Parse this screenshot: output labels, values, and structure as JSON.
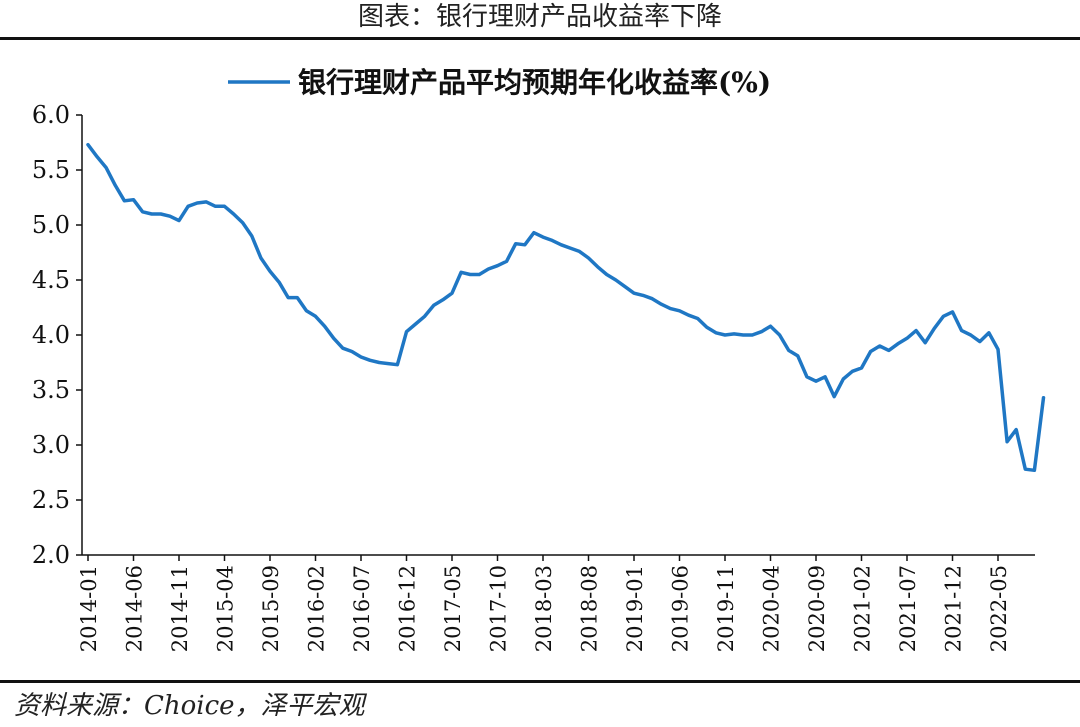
{
  "figure_title": "图表：银行理财产品收益率下降",
  "source_text": "资料来源：Choice，泽平宏观",
  "colors": {
    "series": "#1f77c4",
    "axis": "#111111",
    "rule": "#111111"
  },
  "chart_data": {
    "type": "line",
    "title": "",
    "xlabel": "",
    "ylabel": "",
    "ylim": [
      2.0,
      6.0
    ],
    "yticks": [
      "6.0",
      "5.5",
      "5.0",
      "4.5",
      "4.0",
      "3.5",
      "3.0",
      "2.5",
      "2.0"
    ],
    "xticks": [
      "2014-01",
      "2014-06",
      "2014-11",
      "2015-04",
      "2015-09",
      "2016-02",
      "2016-07",
      "2016-12",
      "2017-05",
      "2017-10",
      "2018-03",
      "2018-08",
      "2019-01",
      "2019-06",
      "2019-11",
      "2020-04",
      "2020-09",
      "2021-02",
      "2021-07",
      "2021-12",
      "2022-05"
    ],
    "grid": false,
    "legend_position": "top-center",
    "series": [
      {
        "name": "银行理财产品平均预期年化收益率(%)",
        "x": [
          "2014-01",
          "2014-02",
          "2014-03",
          "2014-04",
          "2014-05",
          "2014-06",
          "2014-07",
          "2014-08",
          "2014-09",
          "2014-10",
          "2014-11",
          "2014-12",
          "2015-01",
          "2015-02",
          "2015-03",
          "2015-04",
          "2015-05",
          "2015-06",
          "2015-07",
          "2015-08",
          "2015-09",
          "2015-10",
          "2015-11",
          "2015-12",
          "2016-01",
          "2016-02",
          "2016-03",
          "2016-04",
          "2016-05",
          "2016-06",
          "2016-07",
          "2016-08",
          "2016-09",
          "2016-10",
          "2016-11",
          "2016-12",
          "2017-01",
          "2017-02",
          "2017-03",
          "2017-04",
          "2017-05",
          "2017-06",
          "2017-07",
          "2017-08",
          "2017-09",
          "2017-10",
          "2017-11",
          "2017-12",
          "2018-01",
          "2018-02",
          "2018-03",
          "2018-04",
          "2018-05",
          "2018-06",
          "2018-07",
          "2018-08",
          "2018-09",
          "2018-10",
          "2018-11",
          "2018-12",
          "2019-01",
          "2019-02",
          "2019-03",
          "2019-04",
          "2019-05",
          "2019-06",
          "2019-07",
          "2019-08",
          "2019-09",
          "2019-10",
          "2019-11",
          "2019-12",
          "2020-01",
          "2020-02",
          "2020-03",
          "2020-04",
          "2020-05",
          "2020-06",
          "2020-07",
          "2020-08",
          "2020-09",
          "2020-10",
          "2020-11",
          "2020-12",
          "2021-01",
          "2021-02",
          "2021-03",
          "2021-04",
          "2021-05",
          "2021-06",
          "2021-07",
          "2021-08",
          "2021-09",
          "2021-10",
          "2021-11",
          "2021-12",
          "2022-01",
          "2022-02",
          "2022-03",
          "2022-04",
          "2022-05",
          "2022-06",
          "2022-07",
          "2022-08",
          "2022-09",
          "2022-10"
        ],
        "values": [
          5.73,
          5.62,
          5.52,
          5.36,
          5.22,
          5.23,
          5.12,
          5.1,
          5.1,
          5.08,
          5.04,
          5.17,
          5.2,
          5.21,
          5.17,
          5.17,
          5.1,
          5.02,
          4.9,
          4.7,
          4.58,
          4.48,
          4.34,
          4.34,
          4.22,
          4.17,
          4.08,
          3.97,
          3.88,
          3.85,
          3.8,
          3.77,
          3.75,
          3.74,
          3.73,
          4.03,
          4.1,
          4.17,
          4.27,
          4.32,
          4.38,
          4.57,
          4.55,
          4.55,
          4.6,
          4.63,
          4.67,
          4.83,
          4.82,
          4.93,
          4.89,
          4.86,
          4.82,
          4.79,
          4.76,
          4.7,
          4.62,
          4.55,
          4.5,
          4.44,
          4.38,
          4.36,
          4.33,
          4.28,
          4.24,
          4.22,
          4.18,
          4.15,
          4.07,
          4.02,
          4.0,
          4.01,
          4.0,
          4.0,
          4.03,
          4.08,
          4.0,
          3.86,
          3.81,
          3.62,
          3.58,
          3.62,
          3.44,
          3.6,
          3.67,
          3.7,
          3.85,
          3.9,
          3.86,
          3.92,
          3.97,
          4.04,
          3.93,
          4.06,
          4.17,
          4.21,
          4.04,
          4.0,
          3.94,
          4.02,
          3.87,
          3.03,
          3.14,
          2.78,
          2.77,
          3.43
        ]
      }
    ]
  }
}
